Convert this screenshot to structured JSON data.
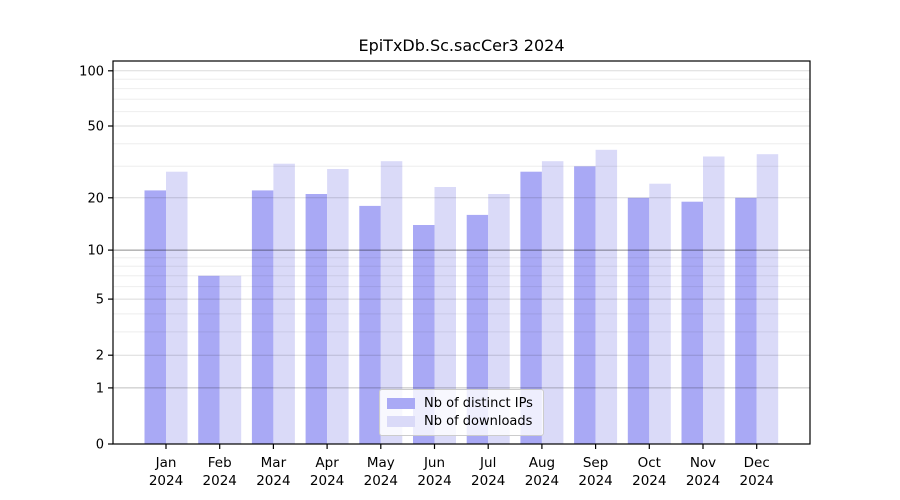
{
  "chart_data": {
    "type": "bar",
    "title": "EpiTxDb.Sc.sacCer3 2024",
    "categories": [
      "Jan 2024",
      "Feb 2024",
      "Mar 2024",
      "Apr 2024",
      "May 2024",
      "Jun 2024",
      "Jul 2024",
      "Aug 2024",
      "Sep 2024",
      "Oct 2024",
      "Nov 2024",
      "Dec 2024"
    ],
    "series": [
      {
        "name": "Nb of distinct IPs",
        "color": "#a9a9f5",
        "values": [
          22,
          7,
          22,
          21,
          18,
          14,
          16,
          28,
          30,
          20,
          19,
          20
        ]
      },
      {
        "name": "Nb of downloads",
        "color": "#dadaf8",
        "values": [
          28,
          7,
          31,
          29,
          32,
          23,
          21,
          32,
          37,
          24,
          34,
          35
        ]
      }
    ],
    "xlabel": "",
    "ylabel": "",
    "yscale": "log1p",
    "yticks": [
      0,
      1,
      2,
      5,
      10,
      20,
      50,
      100
    ],
    "minor_yticks": [
      3,
      4,
      6,
      7,
      8,
      9,
      30,
      40,
      60,
      70,
      80,
      90
    ],
    "ylim": [
      0,
      113
    ],
    "grid": true,
    "legend_position": "lower center",
    "axis_color": "#000000",
    "background_color": "#ffffff"
  }
}
